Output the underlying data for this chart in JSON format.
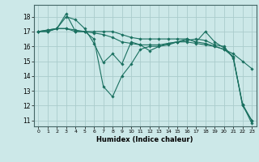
{
  "xlabel": "Humidex (Indice chaleur)",
  "bg_color": "#cce8e8",
  "grid_color": "#aacccc",
  "line_color": "#1a7060",
  "xlim": [
    -0.5,
    23.5
  ],
  "ylim": [
    10.6,
    18.8
  ],
  "yticks": [
    11,
    12,
    13,
    14,
    15,
    16,
    17,
    18
  ],
  "xticks": [
    0,
    1,
    2,
    3,
    4,
    5,
    6,
    7,
    8,
    9,
    10,
    11,
    12,
    13,
    14,
    15,
    16,
    17,
    18,
    19,
    20,
    21,
    22,
    23
  ],
  "series": [
    [
      17.0,
      17.0,
      17.2,
      18.2,
      17.0,
      17.0,
      16.5,
      13.3,
      12.6,
      14.0,
      14.8,
      15.8,
      16.0,
      16.0,
      16.2,
      16.3,
      16.5,
      16.3,
      17.0,
      16.3,
      15.9,
      15.3,
      12.1,
      11.0
    ],
    [
      17.0,
      17.1,
      17.2,
      18.0,
      17.8,
      17.2,
      16.2,
      14.9,
      15.5,
      14.8,
      16.3,
      16.1,
      15.7,
      16.0,
      16.1,
      16.3,
      16.4,
      16.5,
      16.4,
      16.1,
      16.0,
      15.2,
      12.1,
      10.8
    ],
    [
      17.0,
      17.0,
      17.2,
      17.2,
      17.0,
      17.0,
      17.0,
      17.0,
      17.0,
      16.8,
      16.6,
      16.5,
      16.5,
      16.5,
      16.5,
      16.5,
      16.5,
      16.3,
      16.2,
      16.0,
      15.8,
      15.5,
      15.0,
      14.5
    ],
    [
      17.0,
      17.1,
      17.2,
      17.2,
      17.1,
      17.0,
      16.9,
      16.8,
      16.6,
      16.3,
      16.2,
      16.1,
      16.1,
      16.1,
      16.2,
      16.3,
      16.3,
      16.2,
      16.1,
      16.0,
      15.8,
      15.3,
      12.0,
      11.0
    ]
  ]
}
